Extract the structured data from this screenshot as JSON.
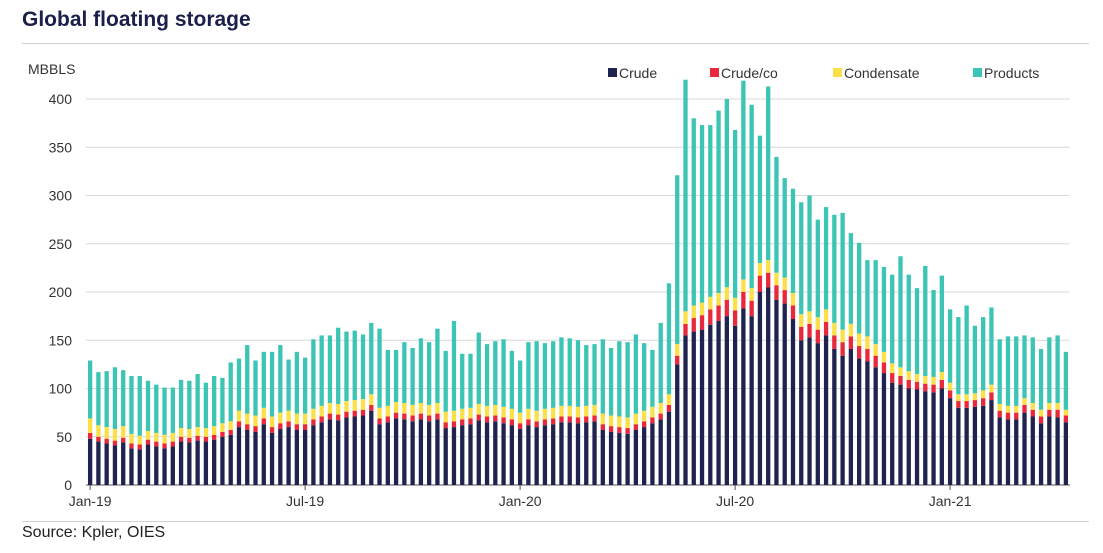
{
  "title": "Global floating storage",
  "source": "Source: Kpler, OIES",
  "colors": {
    "Crude": "#20234f",
    "Crude/co": "#e8283c",
    "Condensate": "#fce04a",
    "Products": "#3cc4b4",
    "grid": "#d9d9d9",
    "axis": "#555555"
  },
  "chart_data": {
    "type": "bar",
    "stacked": true,
    "ylabel": "MBBLS",
    "ylim": [
      0,
      400
    ],
    "yticks": [
      0,
      50,
      100,
      150,
      200,
      250,
      300,
      350,
      400
    ],
    "grid": true,
    "legend_position": "top-right",
    "x_tick_labels": [
      "Jan-19",
      "Jul-19",
      "Jan-20",
      "Jul-20",
      "Jan-21"
    ],
    "x_tick_weeks": [
      0,
      26,
      52,
      78,
      104
    ],
    "series": [
      {
        "name": "Crude",
        "values": [
          48,
          45,
          43,
          41,
          44,
          38,
          37,
          42,
          40,
          38,
          40,
          45,
          44,
          46,
          45,
          47,
          50,
          52,
          60,
          57,
          55,
          63,
          54,
          58,
          60,
          57,
          57,
          62,
          65,
          68,
          67,
          70,
          71,
          72,
          77,
          63,
          65,
          69,
          68,
          66,
          68,
          66,
          68,
          59,
          60,
          62,
          63,
          67,
          65,
          66,
          64,
          62,
          58,
          62,
          60,
          62,
          63,
          65,
          65,
          64,
          65,
          66,
          57,
          55,
          54,
          53,
          57,
          60,
          64,
          68,
          76,
          125,
          155,
          159,
          161,
          166,
          170,
          175,
          165,
          183,
          175,
          200,
          205,
          192,
          188,
          172,
          150,
          153,
          147,
          155,
          141,
          134,
          141,
          131,
          128,
          122,
          116,
          106,
          104,
          100,
          99,
          97,
          96,
          100,
          90,
          80,
          80,
          81,
          82,
          88,
          70,
          68,
          68,
          75,
          71,
          64,
          71,
          70,
          65
        ]
      },
      {
        "name": "Crude/co",
        "values": [
          6,
          5,
          5,
          5,
          5,
          5,
          5,
          5,
          5,
          5,
          5,
          5,
          5,
          5,
          5,
          5,
          5,
          5,
          6,
          6,
          6,
          6,
          6,
          6,
          6,
          6,
          6,
          6,
          6,
          6,
          6,
          6,
          6,
          6,
          6,
          6,
          6,
          6,
          6,
          6,
          6,
          6,
          6,
          6,
          6,
          6,
          6,
          6,
          6,
          6,
          6,
          6,
          6,
          6,
          6,
          6,
          6,
          6,
          6,
          6,
          6,
          6,
          6,
          6,
          6,
          6,
          6,
          6,
          6,
          6,
          7,
          9,
          12,
          14,
          15,
          16,
          16,
          17,
          16,
          17,
          16,
          17,
          15,
          15,
          14,
          14,
          14,
          14,
          14,
          14,
          14,
          14,
          13,
          13,
          13,
          12,
          11,
          10,
          9,
          9,
          8,
          8,
          8,
          9,
          8,
          7,
          7,
          7,
          8,
          8,
          7,
          7,
          7,
          8,
          7,
          7,
          7,
          8,
          7
        ]
      },
      {
        "name": "Condensate",
        "values": [
          15,
          12,
          12,
          12,
          12,
          10,
          9,
          9,
          9,
          9,
          9,
          9,
          9,
          9,
          9,
          9,
          9,
          9,
          11,
          11,
          11,
          11,
          11,
          11,
          11,
          11,
          11,
          11,
          11,
          11,
          11,
          11,
          11,
          11,
          11,
          11,
          11,
          11,
          11,
          11,
          11,
          11,
          11,
          11,
          11,
          11,
          11,
          11,
          11,
          11,
          11,
          11,
          11,
          11,
          11,
          11,
          11,
          11,
          11,
          11,
          11,
          11,
          11,
          11,
          11,
          11,
          11,
          11,
          11,
          11,
          11,
          12,
          13,
          13,
          13,
          13,
          13,
          13,
          13,
          13,
          13,
          13,
          13,
          13,
          13,
          13,
          13,
          13,
          13,
          13,
          13,
          13,
          13,
          13,
          13,
          12,
          11,
          10,
          9,
          9,
          8,
          8,
          8,
          8,
          8,
          7,
          7,
          7,
          8,
          8,
          7,
          7,
          7,
          7,
          7,
          7,
          7,
          7,
          6
        ]
      },
      {
        "name": "Products",
        "values": [
          60,
          55,
          58,
          64,
          58,
          60,
          62,
          52,
          50,
          49,
          47,
          50,
          50,
          55,
          47,
          52,
          47,
          61,
          54,
          71,
          57,
          58,
          67,
          70,
          53,
          64,
          58,
          72,
          73,
          70,
          79,
          72,
          72,
          67,
          74,
          82,
          58,
          54,
          63,
          59,
          67,
          65,
          77,
          63,
          93,
          57,
          56,
          74,
          64,
          66,
          70,
          60,
          54,
          69,
          72,
          68,
          69,
          71,
          70,
          69,
          63,
          63,
          77,
          70,
          78,
          78,
          82,
          70,
          59,
          83,
          115,
          175,
          240,
          194,
          184,
          178,
          189,
          195,
          174,
          206,
          190,
          132,
          180,
          120,
          103,
          108,
          116,
          120,
          101,
          106,
          112,
          121,
          94,
          94,
          79,
          87,
          88,
          92,
          115,
          100,
          89,
          114,
          90,
          100,
          76,
          80,
          92,
          70,
          76,
          80,
          67,
          72,
          72,
          65,
          68,
          63,
          68,
          70,
          60
        ]
      }
    ]
  }
}
